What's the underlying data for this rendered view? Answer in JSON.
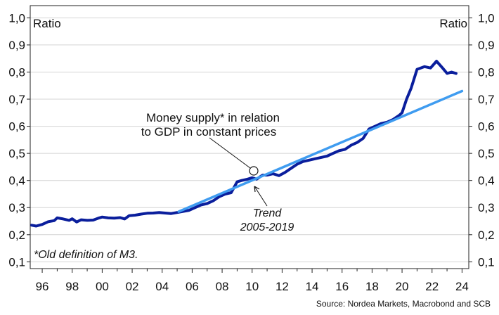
{
  "chart_data": {
    "type": "line",
    "y_left_label": "Ratio",
    "y_right_label": "Ratio",
    "ylim": [
      0.075,
      1.045
    ],
    "xlim": [
      1995.2,
      2024.45
    ],
    "y_ticks": [
      "0,1",
      "0,2",
      "0,3",
      "0,4",
      "0,5",
      "0,6",
      "0,7",
      "0,8",
      "0,9",
      "1,0"
    ],
    "y_tick_values": [
      0.1,
      0.2,
      0.3,
      0.4,
      0.5,
      0.6,
      0.7,
      0.8,
      0.9,
      1.0
    ],
    "x_ticks": [
      "96",
      "98",
      "00",
      "02",
      "04",
      "06",
      "08",
      "10",
      "12",
      "14",
      "16",
      "18",
      "20",
      "22",
      "24"
    ],
    "x_tick_values": [
      1996,
      1998,
      2000,
      2002,
      2004,
      2006,
      2008,
      2010,
      2012,
      2014,
      2016,
      2018,
      2020,
      2022,
      2024
    ],
    "grid": "horizontal",
    "series": [
      {
        "name": "Money supply* in relation to GDP in constant prices",
        "color": "#0a1e9c",
        "x": [
          1995.3,
          1995.6,
          1996.0,
          1996.4,
          1996.8,
          1997.0,
          1997.4,
          1997.8,
          1998.0,
          1998.3,
          1998.6,
          1999.0,
          1999.4,
          1999.8,
          2000.0,
          2000.4,
          2000.8,
          2001.2,
          2001.5,
          2001.8,
          2002.2,
          2002.6,
          2003.0,
          2003.4,
          2003.8,
          2004.2,
          2004.6,
          2005.0,
          2005.4,
          2005.8,
          2006.2,
          2006.6,
          2007.0,
          2007.4,
          2007.8,
          2008.2,
          2008.6,
          2009.0,
          2009.3,
          2009.7,
          2010.0,
          2010.3,
          2010.7,
          2011.0,
          2011.4,
          2011.8,
          2012.2,
          2012.6,
          2013.0,
          2013.4,
          2013.8,
          2014.2,
          2014.6,
          2015.0,
          2015.4,
          2015.8,
          2016.2,
          2016.6,
          2017.0,
          2017.4,
          2017.8,
          2018.2,
          2018.6,
          2019.0,
          2019.4,
          2019.8,
          2020.0,
          2020.3,
          2020.6,
          2021.0,
          2021.5,
          2021.9,
          2022.3,
          2022.7,
          2023.0,
          2023.3,
          2023.6
        ],
        "y": [
          0.235,
          0.232,
          0.238,
          0.248,
          0.252,
          0.262,
          0.258,
          0.253,
          0.259,
          0.247,
          0.255,
          0.253,
          0.254,
          0.262,
          0.265,
          0.262,
          0.261,
          0.263,
          0.258,
          0.27,
          0.272,
          0.276,
          0.279,
          0.28,
          0.282,
          0.28,
          0.278,
          0.282,
          0.286,
          0.29,
          0.3,
          0.31,
          0.315,
          0.325,
          0.34,
          0.35,
          0.355,
          0.395,
          0.4,
          0.405,
          0.41,
          0.405,
          0.42,
          0.42,
          0.425,
          0.418,
          0.43,
          0.445,
          0.46,
          0.47,
          0.475,
          0.48,
          0.485,
          0.49,
          0.5,
          0.51,
          0.515,
          0.53,
          0.54,
          0.555,
          0.59,
          0.6,
          0.61,
          0.615,
          0.625,
          0.64,
          0.65,
          0.7,
          0.74,
          0.81,
          0.82,
          0.815,
          0.84,
          0.815,
          0.795,
          0.8,
          0.795
        ]
      },
      {
        "name": "Trend 2005-2019",
        "color": "#3f9cf0",
        "x": [
          2005.1,
          2024.0
        ],
        "y": [
          0.285,
          0.73
        ]
      }
    ],
    "annotations": {
      "money_line1": "Money supply* in relation",
      "money_line2": "to GDP in constant prices",
      "trend_line1": "Trend",
      "trend_line2": "2005-2019",
      "footnote": "*Old definition of M3."
    },
    "source": "Source: Nordea Markets, Macrobond and SCB"
  }
}
